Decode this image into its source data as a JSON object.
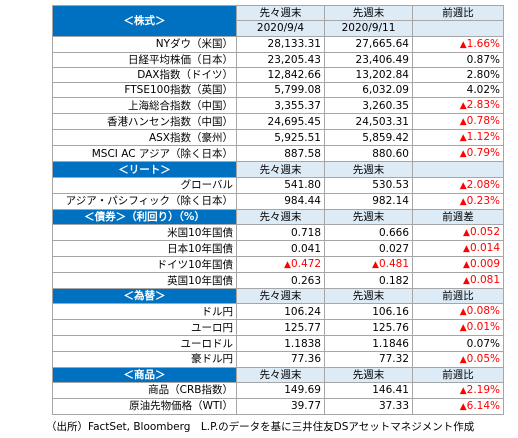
{
  "colors": {
    "section_bg": "#0070c0",
    "header_bg": "#ddebf7",
    "up_color": "#ff0000"
  },
  "header": {
    "prev_prev": "先々週末",
    "prev": "先週末",
    "prev_prev_date": "2020/9/4",
    "prev_date": "2020/9/11",
    "change": "前週比",
    "diff": "前週差"
  },
  "sections": [
    {
      "title": "＜株式＞",
      "header_rows": 2,
      "change_label": "前週比",
      "rows": [
        {
          "name": "NYダウ（米国）",
          "v1": "28,133.31",
          "v1_up": false,
          "v2": "27,665.64",
          "v2_up": false,
          "chg": "1.66%",
          "chg_up": true
        },
        {
          "name": "日経平均株価（日本）",
          "v1": "23,205.43",
          "v1_up": false,
          "v2": "23,406.49",
          "v2_up": false,
          "chg": "0.87%",
          "chg_up": false
        },
        {
          "name": "DAX指数（ドイツ）",
          "v1": "12,842.66",
          "v1_up": false,
          "v2": "13,202.84",
          "v2_up": false,
          "chg": "2.80%",
          "chg_up": false
        },
        {
          "name": "FTSE100指数（英国）",
          "v1": "5,799.08",
          "v1_up": false,
          "v2": "6,032.09",
          "v2_up": false,
          "chg": "4.02%",
          "chg_up": false
        },
        {
          "name": "上海総合指数（中国）",
          "v1": "3,355.37",
          "v1_up": false,
          "v2": "3,260.35",
          "v2_up": false,
          "chg": "2.83%",
          "chg_up": true
        },
        {
          "name": "香港ハンセン指数（中国）",
          "v1": "24,695.45",
          "v1_up": false,
          "v2": "24,503.31",
          "v2_up": false,
          "chg": "0.78%",
          "chg_up": true
        },
        {
          "name": "ASX指数（豪州）",
          "v1": "5,925.51",
          "v1_up": false,
          "v2": "5,859.42",
          "v2_up": false,
          "chg": "1.12%",
          "chg_up": true
        },
        {
          "name": "MSCI AC アジア（除く日本）",
          "v1": "887.58",
          "v1_up": false,
          "v2": "880.60",
          "v2_up": false,
          "chg": "0.79%",
          "chg_up": true
        }
      ]
    },
    {
      "title": "＜リート＞",
      "header_rows": 1,
      "change_label": "",
      "rows": [
        {
          "name": "グローバル",
          "v1": "541.80",
          "v1_up": false,
          "v2": "530.53",
          "v2_up": false,
          "chg": "2.08%",
          "chg_up": true
        },
        {
          "name": "アジア・パシフィック（除く日本）",
          "v1": "984.44",
          "v1_up": false,
          "v2": "982.14",
          "v2_up": false,
          "chg": "0.23%",
          "chg_up": true
        }
      ]
    },
    {
      "title": "＜債券＞（利回り）（%）",
      "header_rows": 1,
      "change_label": "前週差",
      "rows": [
        {
          "name": "米国10年国債",
          "v1": "0.718",
          "v1_up": false,
          "v2": "0.666",
          "v2_up": false,
          "chg": "0.052",
          "chg_up": true
        },
        {
          "name": "日本10年国債",
          "v1": "0.041",
          "v1_up": false,
          "v2": "0.027",
          "v2_up": false,
          "chg": "0.014",
          "chg_up": true
        },
        {
          "name": "ドイツ10年国債",
          "v1": "0.472",
          "v1_up": true,
          "v2": "0.481",
          "v2_up": true,
          "chg": "0.009",
          "chg_up": true
        },
        {
          "name": "英国10年国債",
          "v1": "0.263",
          "v1_up": false,
          "v2": "0.182",
          "v2_up": false,
          "chg": "0.081",
          "chg_up": true
        }
      ]
    },
    {
      "title": "＜為替＞",
      "header_rows": 1,
      "change_label": "前週比",
      "rows": [
        {
          "name": "ドル円",
          "v1": "106.24",
          "v1_up": false,
          "v2": "106.16",
          "v2_up": false,
          "chg": "0.08%",
          "chg_up": true
        },
        {
          "name": "ユーロ円",
          "v1": "125.77",
          "v1_up": false,
          "v2": "125.76",
          "v2_up": false,
          "chg": "0.01%",
          "chg_up": true
        },
        {
          "name": "ユーロドル",
          "v1": "1.1838",
          "v1_up": false,
          "v2": "1.1846",
          "v2_up": false,
          "chg": "0.07%",
          "chg_up": false
        },
        {
          "name": "豪ドル円",
          "v1": "77.36",
          "v1_up": false,
          "v2": "77.32",
          "v2_up": false,
          "chg": "0.05%",
          "chg_up": true
        }
      ]
    },
    {
      "title": "＜商品＞",
      "header_rows": 1,
      "change_label": "前週比",
      "rows": [
        {
          "name": "商品（CRB指数）",
          "v1": "149.69",
          "v1_up": false,
          "v2": "146.41",
          "v2_up": false,
          "chg": "2.19%",
          "chg_up": true
        },
        {
          "name": "原油先物価格（WTI）",
          "v1": "39.77",
          "v1_up": false,
          "v2": "37.33",
          "v2_up": false,
          "chg": "6.14%",
          "chg_up": true
        }
      ]
    }
  ],
  "source_note": "（出所）FactSet, Bloomberg　L.P.のデータを基に三井住友DSアセットマネジメント作成"
}
